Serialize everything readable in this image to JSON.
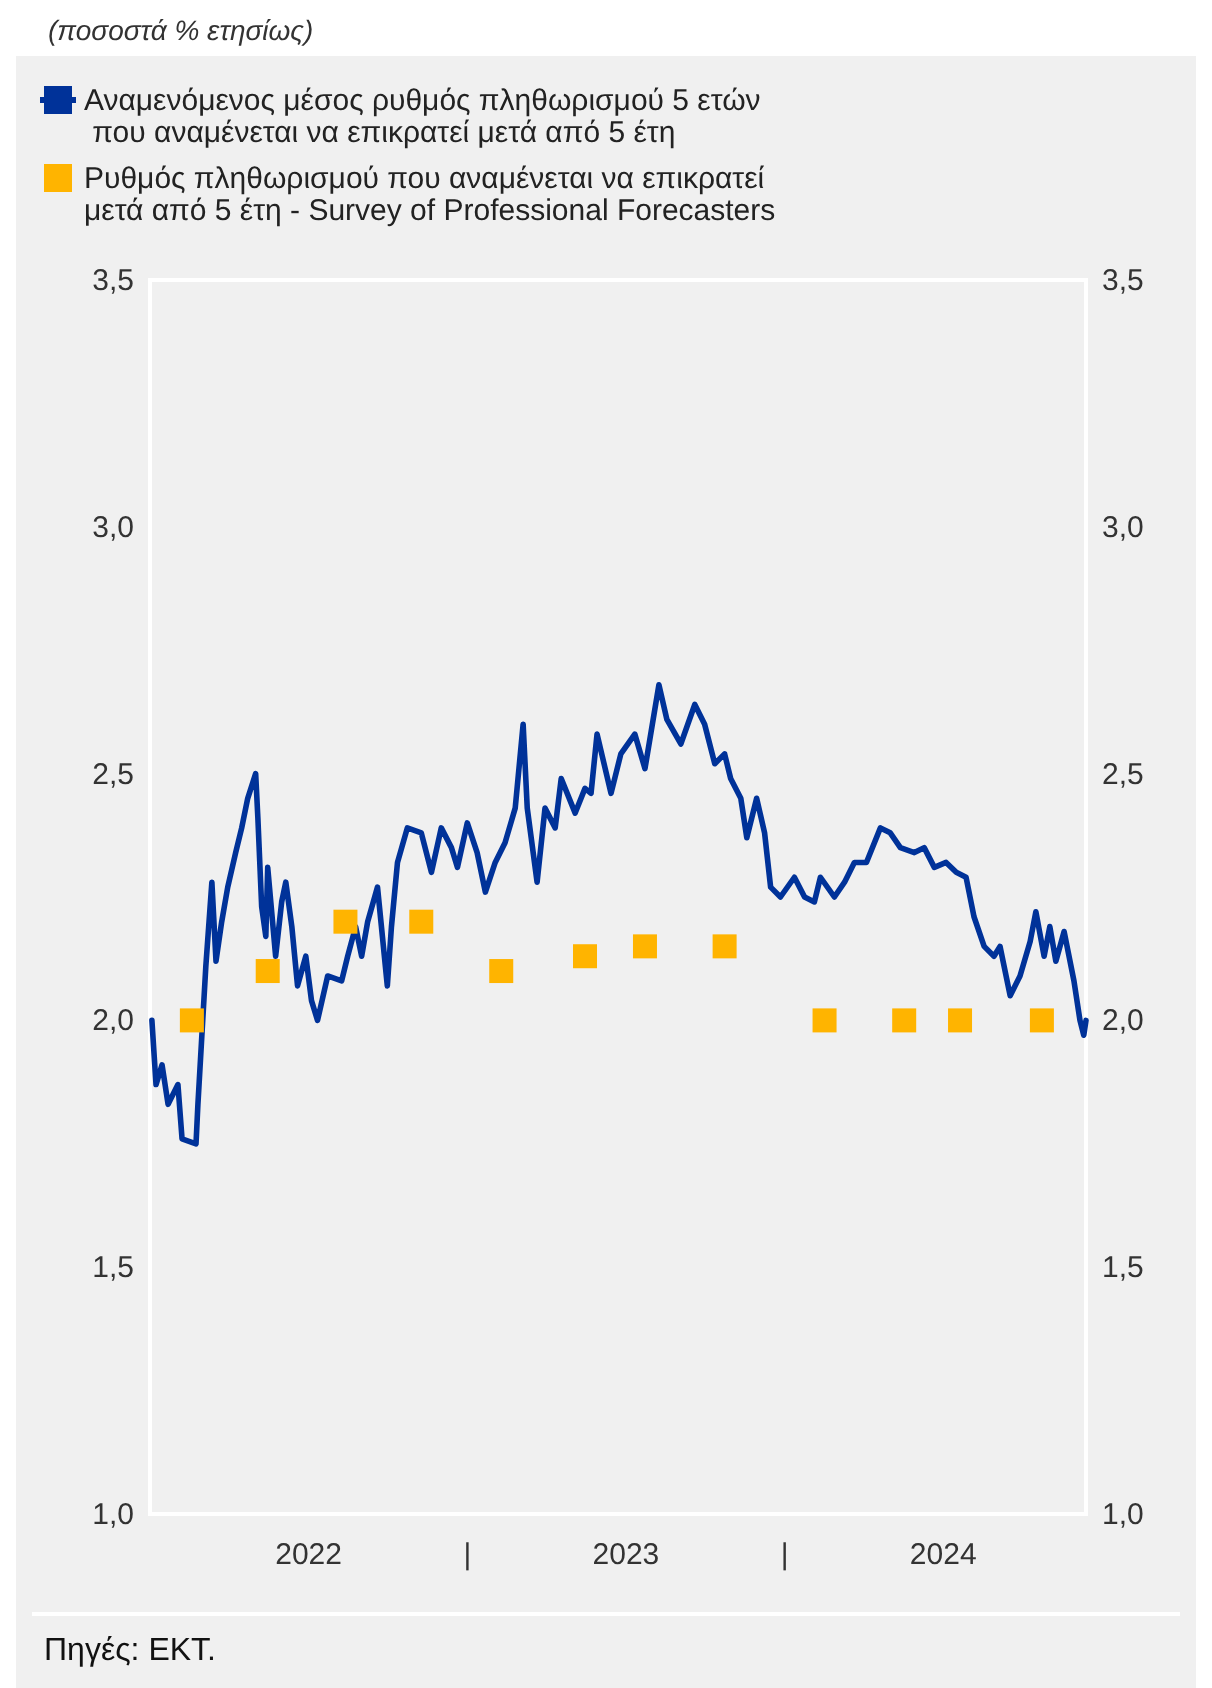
{
  "chart_data": {
    "type": "line",
    "subtitle": "(ποσοστά % ετησίως)",
    "annotations": [
      "Πηγές: ΕΚΤ."
    ],
    "xlim": [
      2022,
      2024.95
    ],
    "xticks": [
      {
        "value": 2022.5,
        "label": "2022"
      },
      {
        "value": 2023,
        "label": "|"
      },
      {
        "value": 2023.5,
        "label": "2023"
      },
      {
        "value": 2024,
        "label": "|"
      },
      {
        "value": 2024.5,
        "label": "2024"
      }
    ],
    "ylim": [
      1,
      3.5
    ],
    "yticks": [
      {
        "value": 1,
        "label": "1,0"
      },
      {
        "value": 1.5,
        "label": "1,5"
      },
      {
        "value": 2,
        "label": "2,0"
      },
      {
        "value": 2.5,
        "label": "2,5"
      },
      {
        "value": 3,
        "label": "3,0"
      },
      {
        "value": 3.5,
        "label": "3,5"
      }
    ],
    "y2lim": [
      1,
      3.5
    ],
    "y2ticks": [
      {
        "value": 1,
        "label": "1,0"
      },
      {
        "value": 1.5,
        "label": "1,5"
      },
      {
        "value": 2,
        "label": "2,0"
      },
      {
        "value": 2.5,
        "label": "2,5"
      },
      {
        "value": 3,
        "label": "3,0"
      },
      {
        "value": 3.5,
        "label": "3,5"
      }
    ],
    "grid": false,
    "legend": "top left",
    "series": [
      {
        "name": "Αναμενόμενος μέσος ρυθμός πληθωρισμού 5 ετών\n που αναμένεται να επικρατεί μετά από 5 έτη",
        "color": "#003299",
        "line_style": "solid",
        "marker": "none",
        "x": [
          2022.006,
          2022.019,
          2022.038,
          2022.057,
          2022.088,
          2022.101,
          2022.145,
          2022.151,
          2022.176,
          2022.195,
          2022.208,
          2022.226,
          2022.245,
          2022.27,
          2022.289,
          2022.308,
          2022.333,
          2022.34,
          2022.352,
          2022.365,
          2022.371,
          2022.396,
          2022.415,
          2022.428,
          2022.447,
          2022.465,
          2022.491,
          2022.509,
          2022.528,
          2022.56,
          2022.604,
          2022.623,
          2022.648,
          2022.667,
          2022.686,
          2022.717,
          2022.748,
          2022.761,
          2022.78,
          2022.811,
          2022.855,
          2022.887,
          2022.918,
          2022.95,
          2022.969,
          2023.0,
          2023.031,
          2023.057,
          2023.088,
          2023.119,
          2023.151,
          2023.176,
          2023.189,
          2023.22,
          2023.245,
          2023.277,
          2023.296,
          2023.34,
          2023.371,
          2023.39,
          2023.409,
          2023.453,
          2023.484,
          2023.528,
          2023.56,
          2023.591,
          2023.604,
          2023.629,
          2023.673,
          2023.717,
          2023.748,
          2023.78,
          2023.811,
          2023.83,
          2023.862,
          2023.881,
          2023.912,
          2023.937,
          2023.956,
          2023.987,
          2024.031,
          2024.063,
          2024.094,
          2024.113,
          2024.157,
          2024.189,
          2024.22,
          2024.258,
          2024.302,
          2024.333,
          2024.365,
          2024.409,
          2024.44,
          2024.472,
          2024.509,
          2024.541,
          2024.572,
          2024.597,
          2024.629,
          2024.66,
          2024.679,
          2024.711,
          2024.742,
          2024.774,
          2024.792,
          2024.818,
          2024.836,
          2024.855,
          2024.881,
          2024.912,
          2024.931,
          2024.943,
          2024.95
        ],
        "values": [
          2.0,
          1.87,
          1.91,
          1.83,
          1.87,
          1.76,
          1.75,
          1.83,
          2.11,
          2.28,
          2.12,
          2.2,
          2.27,
          2.34,
          2.39,
          2.45,
          2.5,
          2.41,
          2.23,
          2.17,
          2.31,
          2.13,
          2.24,
          2.28,
          2.19,
          2.07,
          2.13,
          2.04,
          2.0,
          2.09,
          2.08,
          2.13,
          2.19,
          2.13,
          2.2,
          2.27,
          2.07,
          2.19,
          2.32,
          2.39,
          2.38,
          2.3,
          2.39,
          2.35,
          2.31,
          2.4,
          2.34,
          2.26,
          2.32,
          2.36,
          2.43,
          2.6,
          2.43,
          2.28,
          2.43,
          2.39,
          2.49,
          2.42,
          2.47,
          2.46,
          2.58,
          2.46,
          2.54,
          2.58,
          2.51,
          2.63,
          2.68,
          2.61,
          2.56,
          2.64,
          2.6,
          2.52,
          2.54,
          2.49,
          2.45,
          2.37,
          2.45,
          2.38,
          2.27,
          2.25,
          2.29,
          2.25,
          2.24,
          2.29,
          2.25,
          2.28,
          2.32,
          2.32,
          2.39,
          2.38,
          2.35,
          2.34,
          2.35,
          2.31,
          2.32,
          2.3,
          2.29,
          2.21,
          2.15,
          2.13,
          2.15,
          2.05,
          2.09,
          2.16,
          2.22,
          2.13,
          2.19,
          2.12,
          2.18,
          2.08,
          2.0,
          1.97,
          2.0
        ]
      },
      {
        "name": "Ρυθμός πληθωρισμού που αναμένεται να επικρατεί\nμετά από 5 έτη - Survey of Professional Forecasters",
        "type": "scatter",
        "color": "#ffb400",
        "marker": "square",
        "x": [
          2022.132,
          2022.371,
          2022.616,
          2022.855,
          2023.107,
          2023.371,
          2023.56,
          2023.811,
          2024.126,
          2024.377,
          2024.553,
          2024.811
        ],
        "values": [
          2.0,
          2.1,
          2.2,
          2.2,
          2.1,
          2.13,
          2.15,
          2.15,
          2.0,
          2.0,
          2.0,
          2.0
        ]
      }
    ]
  }
}
